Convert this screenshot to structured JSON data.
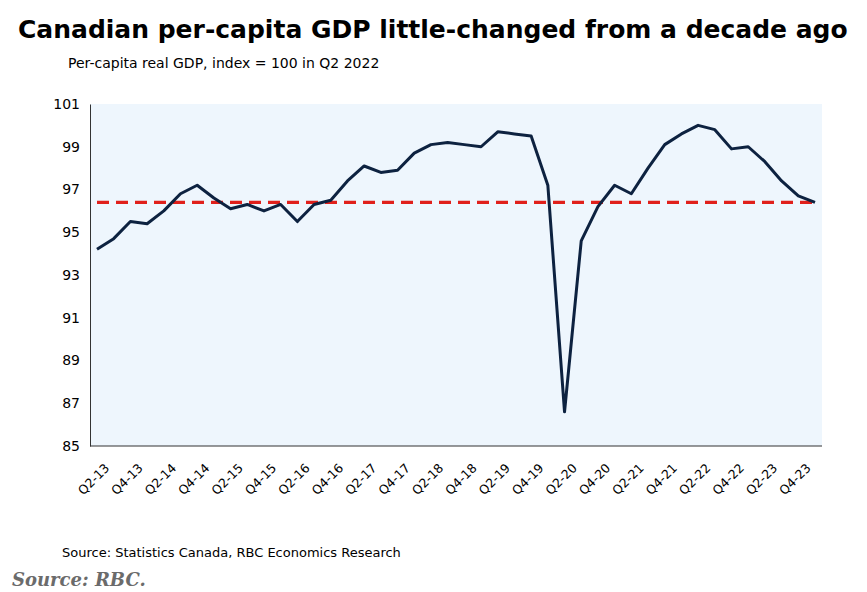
{
  "chart_data": {
    "type": "line",
    "title": "Canadian per-capita GDP little-changed from a decade ago",
    "subtitle": "Per-capita real GDP, index = 100 in Q2 2022",
    "source": "Source: Statistics Canada, RBC Economics Research",
    "credit": "Source: RBC.",
    "categories": [
      "Q2-13",
      null,
      "Q4-13",
      null,
      "Q2-14",
      null,
      "Q4-14",
      null,
      "Q2-15",
      null,
      "Q4-15",
      null,
      "Q2-16",
      null,
      "Q4-16",
      null,
      "Q2-17",
      null,
      "Q4-17",
      null,
      "Q2-18",
      null,
      "Q4-18",
      null,
      "Q2-19",
      null,
      "Q4-19",
      null,
      "Q2-20",
      null,
      "Q4-20",
      null,
      "Q2-21",
      null,
      "Q4-21",
      null,
      "Q2-22",
      null,
      "Q4-22",
      null,
      "Q2-23",
      null,
      "Q4-23",
      null
    ],
    "values": [
      94.2,
      94.7,
      95.5,
      95.4,
      96.0,
      96.8,
      97.2,
      96.6,
      96.1,
      96.3,
      96.0,
      96.3,
      95.5,
      96.3,
      96.5,
      97.4,
      98.1,
      97.8,
      97.9,
      98.7,
      99.1,
      99.2,
      99.1,
      99.0,
      99.7,
      99.6,
      99.5,
      97.2,
      86.6,
      94.6,
      96.2,
      97.2,
      96.8,
      98.0,
      99.1,
      99.6,
      100.0,
      99.8,
      98.9,
      99.0,
      98.3,
      97.4,
      96.7,
      96.4
    ],
    "color": "#0d2240",
    "reference_line": {
      "value": 96.4,
      "color": "#e0201b",
      "line_style": "dashed"
    },
    "ylim": [
      85,
      101
    ],
    "yticks": [
      85,
      87,
      89,
      91,
      93,
      95,
      97,
      99,
      101
    ],
    "grid": false
  }
}
